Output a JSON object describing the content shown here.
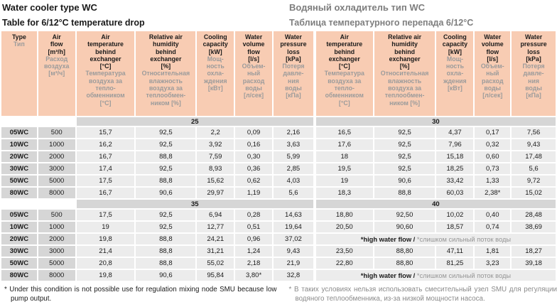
{
  "titles": {
    "en": {
      "title": "Water cooler type WC",
      "subtitle": "Table for 6/12°C temperature drop"
    },
    "ru": {
      "title": "Водяный охладитель тип WC",
      "subtitle": "Таблица температурного перепада 6/12°С"
    }
  },
  "colors": {
    "header_bg": "#f8ccb3",
    "label_bg": "#d6d6d6",
    "cell_bg": "#ececec",
    "ru_text": "#9b9b9b",
    "title_ru_text": "#7e7e7e"
  },
  "table": {
    "col_headers": [
      {
        "id": "type",
        "en": "Type",
        "ru": "Тип"
      },
      {
        "id": "air-flow",
        "en": "Air\nflow\n[m³/h]",
        "ru": "Расход\nвоздуха\n[м³/ч]"
      },
      {
        "id": "air-temp",
        "en": "Air\ntemperature\nbehind\nexchanger\n[°C]",
        "ru": "Температура\nвоздуха за\nтепло-\nобменником\n[°C]"
      },
      {
        "id": "humidity",
        "en": "Relative air\nhumidity\nbehind\nexchanger\n[%]",
        "ru": "Относительная\nвлажность\nвоздуха за\nтеплообмен-\nником [%]"
      },
      {
        "id": "cooling",
        "en": "Cooling\ncapacity\n[kW]",
        "ru": "Мощ-\nность\nохла-\nждения\n[кВт]"
      },
      {
        "id": "water-flow",
        "en": "Water\nvolume\nflow\n[l/s]",
        "ru": "Объем-\nный\nрасход\nводы\n[л/сек]"
      },
      {
        "id": "pressure",
        "en": "Water\npressure\nloss\n[kPa]",
        "ru": "Потеря\nдавле-\nния\nводы\n[кПа]"
      }
    ],
    "left": {
      "sections": [
        {
          "band": "25",
          "rows": [
            {
              "type": "05WC",
              "flow": "500",
              "values": [
                "15,7",
                "92,5",
                "2,2",
                "0,09",
                "2,16"
              ]
            },
            {
              "type": "10WC",
              "flow": "1000",
              "values": [
                "16,2",
                "92,5",
                "3,92",
                "0,16",
                "3,63"
              ]
            },
            {
              "type": "20WC",
              "flow": "2000",
              "values": [
                "16,7",
                "88,8",
                "7,59",
                "0,30",
                "5,99"
              ]
            },
            {
              "type": "30WC",
              "flow": "3000",
              "values": [
                "17,4",
                "92,5",
                "8,93",
                "0,36",
                "2,85"
              ]
            },
            {
              "type": "50WC",
              "flow": "5000",
              "values": [
                "17,5",
                "88,8",
                "15,62",
                "0,62",
                "4,03"
              ]
            },
            {
              "type": "80WC",
              "flow": "8000",
              "values": [
                "16,7",
                "90,6",
                "29,97",
                "1,19",
                "5,6"
              ]
            }
          ]
        },
        {
          "band": "35",
          "rows": [
            {
              "type": "05WC",
              "flow": "500",
              "values": [
                "17,5",
                "92,5",
                "6,94",
                "0,28",
                "14,63"
              ]
            },
            {
              "type": "10WC",
              "flow": "1000",
              "values": [
                "19",
                "92,5",
                "12,77",
                "0,51",
                "19,64"
              ]
            },
            {
              "type": "20WC",
              "flow": "2000",
              "values": [
                "19,8",
                "88,8",
                "24,21",
                "0,96",
                "37,02"
              ]
            },
            {
              "type": "30WC",
              "flow": "3000",
              "values": [
                "21,4",
                "88,8",
                "31,21",
                "1,24",
                "9,43"
              ]
            },
            {
              "type": "50WC",
              "flow": "5000",
              "values": [
                "20,8",
                "88,8",
                "55,02",
                "2,18",
                "21,9"
              ]
            },
            {
              "type": "80WC",
              "flow": "8000",
              "values": [
                "19,8",
                "90,6",
                "95,84",
                "3,80*",
                "32,8"
              ]
            }
          ]
        }
      ]
    },
    "right": {
      "note_en": "*high water flow / ",
      "note_ru": "*слишком сильный поток воды",
      "sections": [
        {
          "band": "30",
          "rows": [
            {
              "values": [
                "16,5",
                "92,5",
                "4,37",
                "0,17",
                "7,56"
              ]
            },
            {
              "values": [
                "17,6",
                "92,5",
                "7,96",
                "0,32",
                "9,43"
              ]
            },
            {
              "values": [
                "18",
                "92,5",
                "15,18",
                "0,60",
                "17,48"
              ]
            },
            {
              "values": [
                "19,5",
                "92,5",
                "18,25",
                "0,73",
                "5,6"
              ]
            },
            {
              "values": [
                "19",
                "90,6",
                "33,42",
                "1,33",
                "9,72"
              ]
            },
            {
              "values": [
                "18,3",
                "88,8",
                "60,03",
                "2,38*",
                "15,02"
              ]
            }
          ]
        },
        {
          "band": "40",
          "rows": [
            {
              "values": [
                "18,80",
                "92,50",
                "10,02",
                "0,40",
                "28,48"
              ]
            },
            {
              "values": [
                "20,50",
                "90,60",
                "18,57",
                "0,74",
                "38,69"
              ]
            },
            {
              "note": true
            },
            {
              "values": [
                "23,50",
                "88,80",
                "47,11",
                "1,81",
                "18,27"
              ]
            },
            {
              "values": [
                "22,80",
                "88,80",
                "81,25",
                "3,23",
                "39,18"
              ]
            },
            {
              "note": true
            }
          ]
        }
      ]
    }
  },
  "footnotes": {
    "en": "* Under this condition is not possible use for regulation mixing node SMU because low pump output.",
    "ru": "* В таких условиях нельзя использовать смесительный узел SMU для регуляции водяного теплообменника, из-за низкой мощности насоса."
  }
}
